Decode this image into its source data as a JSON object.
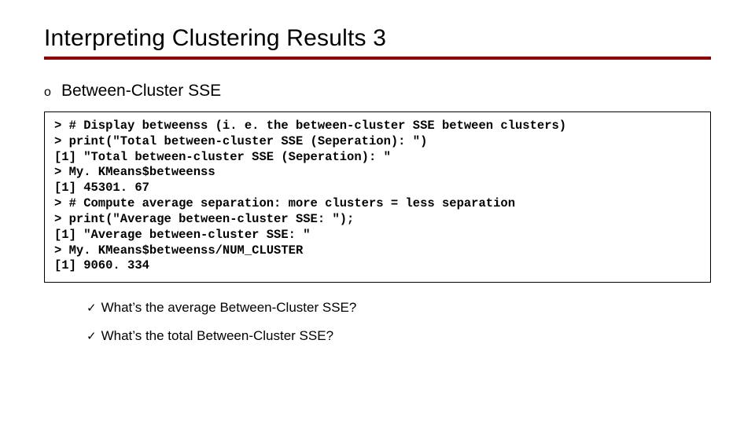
{
  "title": "Interpreting Clustering Results 3",
  "subhead_bullet": "o",
  "subhead": "Between-Cluster SSE",
  "code_lines": [
    "> # Display betweenss (i. e. the between-cluster SSE between clusters)",
    "> print(\"Total between-cluster SSE (Seperation): \")",
    "[1] \"Total between-cluster SSE (Seperation): \"",
    "> My. KMeans$betweenss",
    "[1] 45301. 67",
    "> # Compute average separation: more clusters = less separation",
    "> print(\"Average between-cluster SSE: \");",
    "[1] \"Average between-cluster SSE: \"",
    "> My. KMeans$betweenss/NUM_CLUSTER",
    "[1] 9060. 334"
  ],
  "questions": [
    "What’s the average Between-Cluster SSE?",
    "What’s the total Between-Cluster SSE?"
  ],
  "checkmark": "✓",
  "colors": {
    "rule": "#8b0000",
    "text": "#000000",
    "bg": "#ffffff"
  },
  "fonts": {
    "title_size_pt": 30,
    "subhead_size_pt": 21,
    "code_size_pt": 15.5,
    "question_size_pt": 17,
    "code_family": "Courier New",
    "body_family": "Verdana",
    "question_family": "Arial"
  }
}
